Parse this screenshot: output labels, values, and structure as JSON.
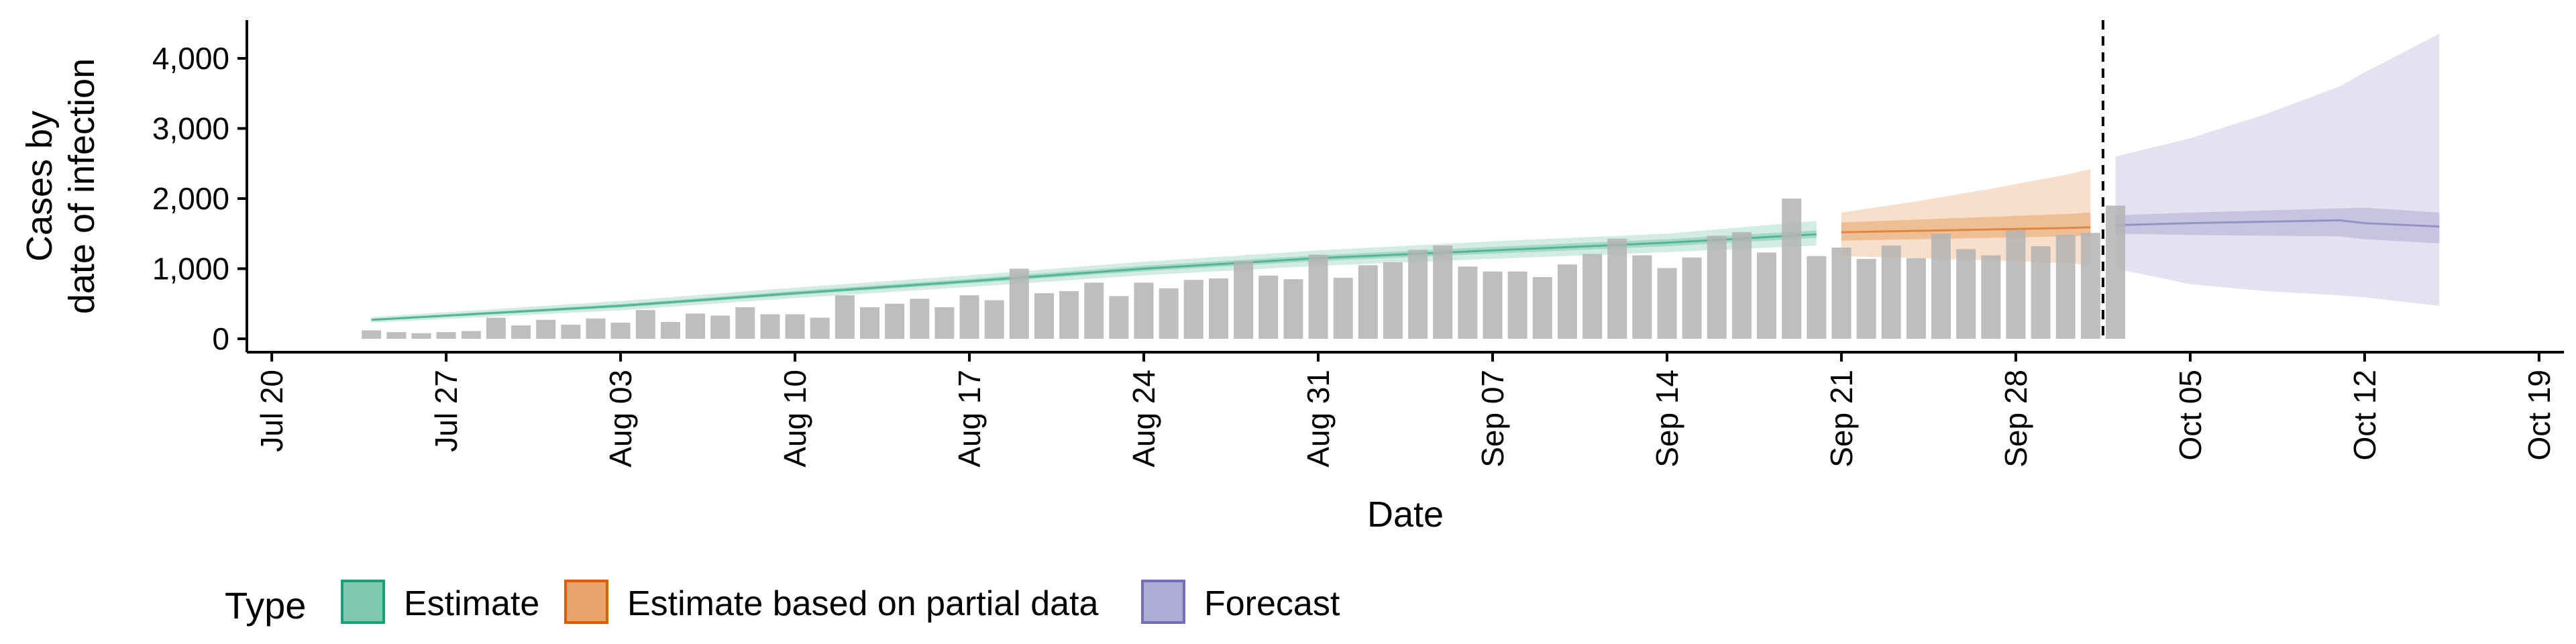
{
  "chart_data": {
    "type": "bar",
    "xlabel": "Date",
    "ylabel_lines": [
      "Cases by",
      "date of infection"
    ],
    "ylim": [
      0,
      4500
    ],
    "y_ticks": [
      {
        "value": 0,
        "label": "0"
      },
      {
        "value": 1000,
        "label": "1,000"
      },
      {
        "value": 2000,
        "label": "2,000"
      },
      {
        "value": 3000,
        "label": "3,000"
      },
      {
        "value": 4000,
        "label": "4,000"
      }
    ],
    "x_range": [
      "2020-07-19",
      "2020-10-20"
    ],
    "x_ticks": [
      {
        "date": "2020-07-20",
        "label": "Jul 20"
      },
      {
        "date": "2020-07-27",
        "label": "Jul 27"
      },
      {
        "date": "2020-08-03",
        "label": "Aug 03"
      },
      {
        "date": "2020-08-10",
        "label": "Aug 10"
      },
      {
        "date": "2020-08-17",
        "label": "Aug 17"
      },
      {
        "date": "2020-08-24",
        "label": "Aug 24"
      },
      {
        "date": "2020-08-31",
        "label": "Aug 31"
      },
      {
        "date": "2020-09-07",
        "label": "Sep 07"
      },
      {
        "date": "2020-09-14",
        "label": "Sep 14"
      },
      {
        "date": "2020-09-21",
        "label": "Sep 21"
      },
      {
        "date": "2020-09-28",
        "label": "Sep 28"
      },
      {
        "date": "2020-10-05",
        "label": "Oct 05"
      },
      {
        "date": "2020-10-12",
        "label": "Oct 12"
      },
      {
        "date": "2020-10-19",
        "label": "Oct 19"
      }
    ],
    "reported_cases": {
      "start_date": "2020-07-24",
      "color": "#b3b3b3",
      "values": [
        120,
        95,
        80,
        95,
        110,
        300,
        190,
        270,
        200,
        290,
        230,
        410,
        240,
        360,
        330,
        450,
        350,
        350,
        300,
        620,
        450,
        500,
        570,
        450,
        620,
        550,
        1000,
        650,
        680,
        800,
        610,
        800,
        720,
        840,
        860,
        1110,
        900,
        850,
        1200,
        870,
        1050,
        1090,
        1270,
        1330,
        1030,
        960,
        960,
        880,
        1060,
        1210,
        1430,
        1190,
        1010,
        1160,
        1470,
        1520,
        1230,
        2000,
        1180,
        1300,
        1140,
        1330,
        1150,
        1500,
        1280,
        1190,
        1550,
        1320,
        1480,
        1510,
        1900
      ]
    },
    "forecast_date": "2020-10-01",
    "series": [
      {
        "name": "Estimate",
        "color": "#1b9e77",
        "fill": "#7fc8ad",
        "dates": [
          "2020-07-24",
          "2020-08-03",
          "2020-08-10",
          "2020-08-17",
          "2020-08-24",
          "2020-08-31",
          "2020-09-07",
          "2020-09-14",
          "2020-09-20"
        ],
        "median": [
          270,
          470,
          650,
          820,
          1000,
          1150,
          1260,
          1370,
          1490
        ],
        "inner_low": [
          255,
          445,
          625,
          790,
          965,
          1110,
          1215,
          1320,
          1440
        ],
        "inner_high": [
          285,
          495,
          680,
          855,
          1040,
          1190,
          1310,
          1420,
          1545
        ],
        "outer_low": [
          230,
          405,
          580,
          740,
          905,
          1040,
          1140,
          1235,
          1330
        ],
        "outer_high": [
          310,
          540,
          730,
          905,
          1100,
          1260,
          1390,
          1500,
          1680
        ]
      },
      {
        "name": "Estimate based on partial data",
        "color": "#d95f02",
        "fill": "#e8a26a",
        "dates": [
          "2020-09-21",
          "2020-09-24",
          "2020-09-27",
          "2020-09-30",
          "2020-10-01"
        ],
        "median": [
          1520,
          1540,
          1560,
          1580,
          1590
        ],
        "inner_low": [
          1400,
          1420,
          1440,
          1460,
          1470
        ],
        "inner_high": [
          1660,
          1700,
          1740,
          1780,
          1800
        ],
        "outer_low": [
          1180,
          1150,
          1120,
          1080,
          1050
        ],
        "outer_high": [
          1800,
          1960,
          2140,
          2340,
          2420
        ]
      },
      {
        "name": "Forecast",
        "color": "#7570b3",
        "fill": "#aeabd4",
        "dates": [
          "2020-10-02",
          "2020-10-05",
          "2020-10-08",
          "2020-10-11",
          "2020-10-12",
          "2020-10-15"
        ],
        "median": [
          1620,
          1650,
          1670,
          1690,
          1650,
          1600
        ],
        "inner_low": [
          1500,
          1480,
          1470,
          1460,
          1420,
          1360
        ],
        "inner_high": [
          1760,
          1800,
          1830,
          1860,
          1870,
          1800
        ],
        "outer_low": [
          1000,
          780,
          680,
          620,
          590,
          470
        ],
        "outer_high": [
          2600,
          2860,
          3200,
          3600,
          3800,
          4350
        ]
      }
    ],
    "legend": {
      "title": "Type",
      "placement": "bottom",
      "entries": [
        "Estimate",
        "Estimate based on partial data",
        "Forecast"
      ]
    }
  }
}
